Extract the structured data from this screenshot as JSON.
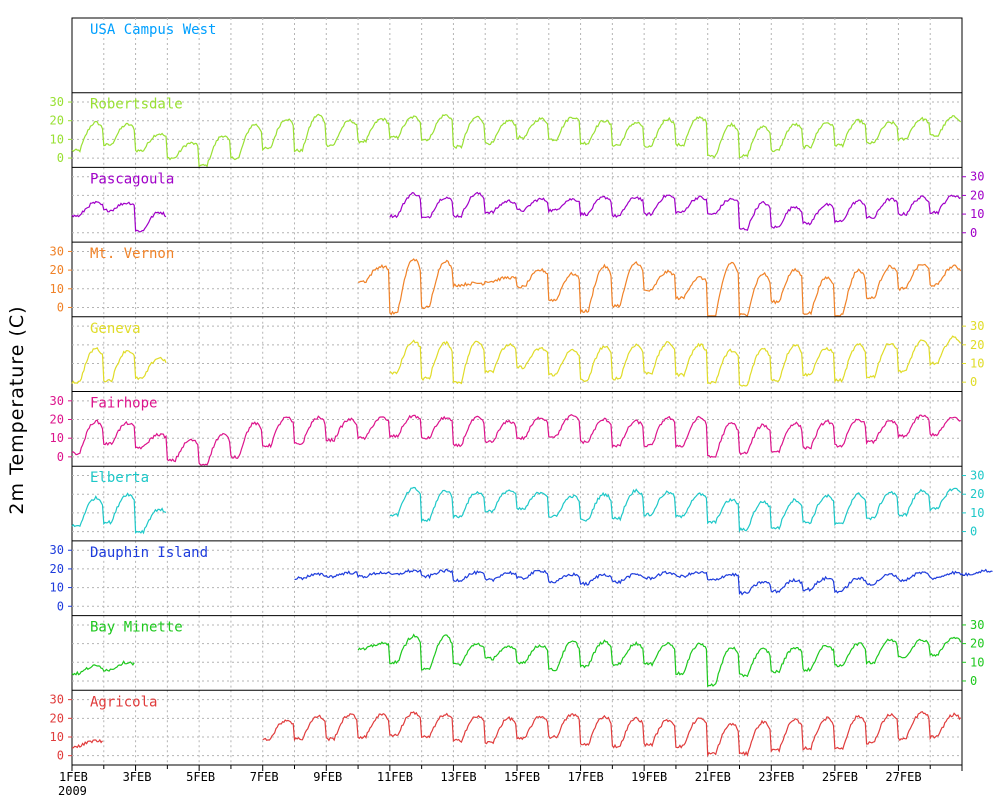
{
  "chart_data": {
    "type": "line",
    "ylabel": "2m Temperature (C)",
    "xaxis": {
      "ticks": [
        "1FEB",
        "3FEB",
        "5FEB",
        "7FEB",
        "9FEB",
        "11FEB",
        "13FEB",
        "15FEB",
        "17FEB",
        "19FEB",
        "21FEB",
        "23FEB",
        "25FEB",
        "27FEB"
      ],
      "year_label": "2009",
      "range": [
        "2009-02-01",
        "2009-03-01"
      ]
    },
    "yticks": [
      0,
      10,
      20,
      30
    ],
    "ylim": [
      -5,
      35
    ],
    "grid": true,
    "panels": [
      {
        "name": "USA Campus West",
        "color": "#00a0ff",
        "axis_side": "none",
        "segments": []
      },
      {
        "name": "Robertsdale",
        "color": "#99e033",
        "axis_side": "left",
        "segments": [
          {
            "start": "2009-02-01",
            "daily_min": [
              4,
              7,
              4,
              0,
              -4,
              0,
              5,
              4,
              7,
              9,
              11,
              10,
              6,
              8,
              11,
              10,
              8,
              7,
              6,
              7,
              1,
              1,
              4,
              6,
              7,
              8,
              10,
              12
            ],
            "daily_max": [
              19,
              18,
              13,
              8,
              12,
              18,
              21,
              23,
              20,
              21,
              22,
              23,
              22,
              20,
              21,
              22,
              20,
              19,
              21,
              22,
              18,
              17,
              18,
              19,
              20,
              19,
              21,
              22
            ]
          }
        ]
      },
      {
        "name": "Pascagoula",
        "color": "#a000c8",
        "axis_side": "right",
        "segments": [
          {
            "start": "2009-02-01",
            "daily_min": [
              9,
              12,
              1
            ],
            "daily_max": [
              16,
              16,
              11
            ]
          },
          {
            "start": "2009-02-11",
            "daily_min": [
              9,
              8,
              9,
              11,
              12,
              12,
              10,
              9,
              10,
              11,
              10,
              2,
              3,
              5,
              6,
              8,
              10,
              11
            ],
            "daily_max": [
              21,
              19,
              21,
              17,
              18,
              18,
              19,
              19,
              20,
              19,
              18,
              16,
              14,
              15,
              17,
              18,
              19,
              20
            ]
          }
        ]
      },
      {
        "name": "Mt. Vernon",
        "color": "#f08228",
        "axis_side": "left",
        "segments": [
          {
            "start": "2009-02-10",
            "daily_min": [
              14,
              -3,
              0,
              12,
              14,
              11,
              4,
              -2,
              1,
              9,
              5,
              -5,
              -4,
              3,
              -3,
              -4,
              5,
              10,
              12
            ],
            "daily_max": [
              22,
              26,
              25,
              13,
              16,
              20,
              18,
              22,
              24,
              19,
              16,
              24,
              18,
              20,
              16,
              20,
              22,
              23,
              22
            ]
          }
        ]
      },
      {
        "name": "Geneva",
        "color": "#e0dc28",
        "axis_side": "right",
        "segments": [
          {
            "start": "2009-02-01",
            "daily_min": [
              0,
              1,
              2
            ],
            "daily_max": [
              18,
              17,
              13
            ]
          },
          {
            "start": "2009-02-11",
            "daily_min": [
              5,
              2,
              0,
              6,
              8,
              4,
              1,
              2,
              5,
              4,
              0,
              -2,
              1,
              4,
              1,
              3,
              6,
              10
            ],
            "daily_max": [
              22,
              21,
              22,
              20,
              18,
              17,
              19,
              20,
              21,
              20,
              17,
              18,
              20,
              18,
              20,
              21,
              22,
              24
            ]
          }
        ]
      },
      {
        "name": "Fairhope",
        "color": "#dc148c",
        "axis_side": "left",
        "segments": [
          {
            "start": "2009-02-01",
            "daily_min": [
              2,
              7,
              5,
              -2,
              -4,
              0,
              6,
              7,
              9,
              10,
              11,
              10,
              6,
              8,
              10,
              11,
              8,
              6,
              6,
              6,
              0,
              2,
              3,
              5,
              6,
              8,
              11,
              12
            ],
            "daily_max": [
              19,
              18,
              12,
              9,
              12,
              18,
              21,
              21,
              20,
              21,
              22,
              21,
              21,
              19,
              21,
              22,
              20,
              19,
              21,
              21,
              18,
              17,
              18,
              19,
              20,
              19,
              22,
              21
            ]
          }
        ]
      },
      {
        "name": "Elberta",
        "color": "#1ec8c8",
        "axis_side": "right",
        "segments": [
          {
            "start": "2009-02-01",
            "daily_min": [
              3,
              5,
              0
            ],
            "daily_max": [
              18,
              20,
              12
            ]
          },
          {
            "start": "2009-02-11",
            "daily_min": [
              9,
              6,
              8,
              11,
              12,
              8,
              6,
              7,
              9,
              8,
              5,
              1,
              2,
              5,
              4,
              7,
              9,
              12
            ],
            "daily_max": [
              23,
              22,
              21,
              22,
              21,
              19,
              20,
              22,
              21,
              20,
              17,
              16,
              17,
              19,
              20,
              21,
              22,
              23
            ]
          }
        ]
      },
      {
        "name": "Dauphin Island",
        "color": "#1e3cdc",
        "axis_side": "left",
        "segments": [
          {
            "start": "2009-02-08",
            "daily_min": [
              15,
              16,
              16,
              17,
              16,
              14,
              14,
              15,
              13,
              12,
              13,
              15,
              16,
              14,
              7,
              8,
              9,
              8,
              12,
              14,
              15,
              17
            ],
            "daily_max": [
              17,
              18,
              18,
              19,
              19,
              18,
              18,
              19,
              17,
              17,
              17,
              18,
              18,
              17,
              13,
              14,
              15,
              15,
              17,
              18,
              18,
              19
            ]
          }
        ]
      },
      {
        "name": "Bay Minette",
        "color": "#1ec81e",
        "axis_side": "right",
        "segments": [
          {
            "start": "2009-02-01",
            "daily_min": [
              4,
              6
            ],
            "daily_max": [
              8,
              10
            ]
          },
          {
            "start": "2009-02-10",
            "daily_min": [
              17,
              10,
              6,
              9,
              12,
              10,
              6,
              8,
              9,
              9,
              4,
              -2,
              3,
              5,
              6,
              8,
              10,
              13,
              14
            ],
            "daily_max": [
              20,
              24,
              24,
              20,
              18,
              19,
              21,
              21,
              20,
              20,
              20,
              18,
              17,
              18,
              19,
              20,
              22,
              22,
              23
            ]
          }
        ]
      },
      {
        "name": "Agricola",
        "color": "#e03c3c",
        "axis_side": "left",
        "segments": [
          {
            "start": "2009-02-01",
            "daily_min": [
              5
            ],
            "daily_max": [
              8
            ]
          },
          {
            "start": "2009-02-07",
            "daily_min": [
              9,
              9,
              9,
              10,
              11,
              10,
              8,
              7,
              9,
              10,
              6,
              5,
              6,
              5,
              1,
              1,
              3,
              4,
              4,
              7,
              9,
              10
            ],
            "daily_max": [
              19,
              21,
              22,
              22,
              23,
              22,
              21,
              20,
              21,
              22,
              21,
              20,
              19,
              20,
              17,
              18,
              19,
              20,
              21,
              22,
              23,
              22
            ]
          }
        ]
      }
    ]
  }
}
